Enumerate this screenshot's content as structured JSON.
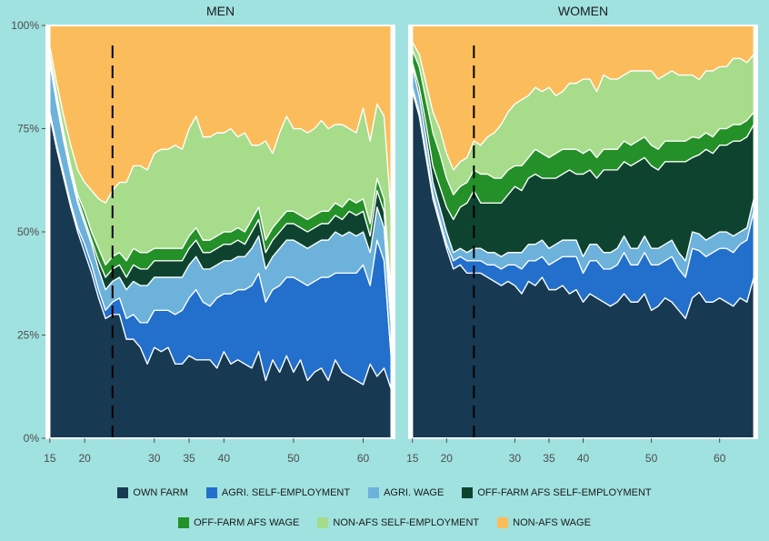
{
  "chart_data": {
    "type": "area",
    "stacked": true,
    "normalized": true,
    "panels": [
      {
        "title": "MEN",
        "x": [
          15,
          16,
          17,
          18,
          19,
          20,
          21,
          22,
          23,
          24,
          25,
          26,
          27,
          28,
          29,
          30,
          31,
          32,
          33,
          34,
          35,
          36,
          37,
          38,
          39,
          40,
          41,
          42,
          43,
          44,
          45,
          46,
          47,
          48,
          49,
          50,
          51,
          52,
          53,
          54,
          55,
          56,
          57,
          58,
          59,
          60,
          61,
          62,
          63,
          64
        ],
        "series": [
          {
            "name": "OWN FARM",
            "values": [
              78,
              70,
              63,
              56,
              50,
              45,
              40,
              34,
              29,
              30,
              30,
              24,
              24,
              22,
              18,
              22,
              21,
              22,
              18,
              18,
              20,
              19,
              19,
              19,
              17,
              21,
              18,
              19,
              18,
              17,
              21,
              14,
              19,
              16,
              20,
              16,
              19,
              14,
              16,
              17,
              14,
              19,
              16,
              15,
              14,
              13,
              18,
              15,
              17,
              12
            ]
          },
          {
            "name": "AGRI. SELF-EMPLOYMENT",
            "values": [
              1,
              1,
              1,
              1,
              1,
              2,
              2,
              2,
              2,
              3,
              4,
              5,
              6,
              6,
              10,
              9,
              10,
              9,
              12,
              13,
              14,
              17,
              14,
              13,
              17,
              14,
              17,
              17,
              18,
              20,
              19,
              19,
              17,
              21,
              19,
              23,
              19,
              23,
              22,
              22,
              25,
              21,
              24,
              25,
              26,
              29,
              19,
              33,
              26,
              8
            ]
          },
          {
            "name": "AGRI. WAGE",
            "values": [
              12,
              10,
              8,
              7,
              6,
              5,
              5,
              5,
              5,
              5,
              5,
              7,
              8,
              9,
              9,
              8,
              8,
              8,
              9,
              8,
              8,
              8,
              8,
              9,
              8,
              8,
              8,
              8,
              8,
              9,
              9,
              8,
              8,
              9,
              9,
              9,
              9,
              9,
              9,
              9,
              9,
              10,
              9,
              10,
              9,
              8,
              8,
              8,
              8,
              8
            ]
          },
          {
            "name": "OFF-FARM AFS SELF-EMPLOYMENT",
            "values": [
              1,
              1,
              1,
              1,
              1,
              1,
              1,
              2,
              3,
              3,
              3,
              3,
              4,
              4,
              4,
              4,
              4,
              4,
              4,
              4,
              4,
              4,
              4,
              4,
              4,
              4,
              4,
              4,
              3,
              4,
              4,
              4,
              4,
              4,
              4,
              4,
              4,
              4,
              4,
              4,
              4,
              4,
              4,
              5,
              5,
              5,
              4,
              4,
              4,
              4
            ]
          },
          {
            "name": "OFF-FARM AFS WAGE",
            "values": [
              1,
              1,
              1,
              1,
              1,
              2,
              2,
              3,
              3,
              3,
              3,
              4,
              4,
              4,
              4,
              3,
              3,
              3,
              3,
              3,
              3,
              3,
              3,
              3,
              3,
              3,
              3,
              3,
              3,
              3,
              3,
              3,
              3,
              3,
              3,
              3,
              3,
              3,
              3,
              3,
              3,
              3,
              3,
              3,
              3,
              3,
              3,
              3,
              3,
              3
            ]
          },
          {
            "name": "NON-AFS SELF-EMPLOYMENT",
            "values": [
              2,
              3,
              4,
              5,
              6,
              7,
              10,
              12,
              15,
              16,
              17,
              19,
              20,
              21,
              20,
              23,
              24,
              24,
              25,
              24,
              26,
              27,
              25,
              25,
              25,
              24,
              25,
              22,
              24,
              18,
              15,
              24,
              18,
              21,
              23,
              20,
              21,
              21,
              21,
              22,
              20,
              19,
              20,
              17,
              17,
              22,
              20,
              18,
              20,
              20
            ]
          },
          {
            "name": "NON-AFS WAGE",
            "values": [
              5,
              14,
              22,
              29,
              35,
              38,
              40,
              42,
              43,
              40,
              38,
              38,
              34,
              34,
              35,
              31,
              30,
              30,
              29,
              30,
              25,
              22,
              27,
              27,
              26,
              26,
              25,
              27,
              26,
              29,
              29,
              28,
              31,
              26,
              22,
              25,
              25,
              26,
              25,
              23,
              25,
              24,
              24,
              25,
              26,
              20,
              28,
              19,
              22,
              45
            ]
          }
        ]
      },
      {
        "title": "WOMEN",
        "x": [
          15,
          16,
          17,
          18,
          19,
          20,
          21,
          22,
          23,
          24,
          25,
          26,
          27,
          28,
          29,
          30,
          31,
          32,
          33,
          34,
          35,
          36,
          37,
          38,
          39,
          40,
          41,
          42,
          43,
          44,
          45,
          46,
          47,
          48,
          49,
          50,
          51,
          52,
          53,
          54,
          55,
          56,
          57,
          58,
          59,
          60,
          61,
          62,
          63,
          64,
          65
        ],
        "series": [
          {
            "name": "OWN FARM",
            "values": [
              84,
              78,
              68,
              58,
              52,
              46,
              41,
              42,
              40,
              40,
              40,
              39,
              38,
              37,
              38,
              37,
              35,
              38,
              37,
              39,
              36,
              36,
              37,
              35,
              36,
              33,
              35,
              34,
              33,
              32,
              33,
              35,
              33,
              33,
              35,
              31,
              32,
              34,
              33,
              31,
              29,
              34,
              35,
              33,
              33,
              34,
              33,
              32,
              34,
              33,
              39
            ]
          },
          {
            "name": "AGRI. SELF-EMPLOYMENT",
            "values": [
              1,
              1,
              1,
              1,
              1,
              1,
              2,
              2,
              3,
              3,
              3,
              3,
              4,
              4,
              4,
              5,
              6,
              5,
              6,
              5,
              6,
              7,
              7,
              9,
              8,
              7,
              8,
              9,
              8,
              9,
              9,
              10,
              9,
              9,
              10,
              11,
              10,
              9,
              11,
              10,
              10,
              12,
              10,
              11,
              12,
              12,
              13,
              13,
              13,
              15,
              16
            ]
          },
          {
            "name": "AGRI. WAGE",
            "values": [
              5,
              4,
              4,
              3,
              3,
              3,
              2,
              2,
              2,
              3,
              3,
              3,
              3,
              3,
              3,
              3,
              4,
              4,
              4,
              4,
              4,
              4,
              4,
              4,
              4,
              4,
              4,
              4,
              4,
              4,
              4,
              4,
              4,
              4,
              4,
              4,
              4,
              4,
              4,
              4,
              4,
              4,
              4,
              4,
              4,
              4,
              4,
              4,
              3,
              3,
              3
            ]
          },
          {
            "name": "OFF-FARM AFS SELF-EMPLOYMENT",
            "values": [
              1,
              2,
              3,
              4,
              5,
              6,
              8,
              10,
              12,
              14,
              11,
              12,
              12,
              13,
              14,
              16,
              15,
              16,
              17,
              15,
              17,
              16,
              16,
              17,
              16,
              20,
              18,
              16,
              20,
              20,
              19,
              18,
              20,
              21,
              19,
              20,
              19,
              20,
              19,
              22,
              24,
              18,
              19,
              22,
              20,
              21,
              21,
              23,
              22,
              22,
              18
            ]
          },
          {
            "name": "OFF-FARM AFS WAGE",
            "values": [
              3,
              5,
              6,
              8,
              8,
              7,
              6,
              5,
              5,
              5,
              7,
              7,
              6,
              6,
              6,
              5,
              6,
              5,
              6,
              6,
              5,
              6,
              6,
              5,
              6,
              5,
              5,
              5,
              5,
              5,
              5,
              5,
              5,
              5,
              5,
              5,
              5,
              5,
              5,
              5,
              5,
              5,
              4,
              4,
              4,
              4,
              4,
              4,
              4,
              4,
              3
            ]
          },
          {
            "name": "NON-AFS SELF-EMPLOYMENT",
            "values": [
              2,
              3,
              4,
              5,
              6,
              6,
              6,
              6,
              6,
              7,
              7,
              9,
              11,
              13,
              14,
              15,
              16,
              15,
              15,
              15,
              17,
              14,
              14,
              16,
              16,
              18,
              17,
              16,
              18,
              17,
              17,
              16,
              18,
              17,
              16,
              18,
              17,
              16,
              17,
              16,
              16,
              15,
              14,
              15,
              16,
              15,
              15,
              16,
              16,
              14,
              14
            ]
          },
          {
            "name": "NON-AFS WAGE",
            "values": [
              4,
              7,
              14,
              21,
              25,
              31,
              35,
              33,
              32,
              28,
              29,
              27,
              26,
              24,
              21,
              19,
              18,
              17,
              15,
              16,
              15,
              17,
              16,
              14,
              14,
              13,
              13,
              16,
              12,
              13,
              13,
              12,
              11,
              11,
              11,
              11,
              13,
              12,
              11,
              12,
              12,
              12,
              13,
              11,
              11,
              10,
              10,
              8,
              8,
              9,
              7
            ]
          }
        ]
      }
    ],
    "x_ticks": [
      15,
      20,
      30,
      35,
      40,
      50,
      60
    ],
    "y_ticks": [
      "0%",
      "25%",
      "50%",
      "75%",
      "100%"
    ],
    "ylim": [
      0,
      100
    ],
    "reference_line_x": 24,
    "colors": {
      "OWN FARM": "#173a52",
      "AGRI. SELF-EMPLOYMENT": "#236fcc",
      "AGRI. WAGE": "#6cb2da",
      "OFF-FARM AFS SELF-EMPLOYMENT": "#0e442f",
      "OFF-FARM AFS WAGE": "#249028",
      "NON-AFS SELF-EMPLOYMENT": "#a6dc8a",
      "NON-AFS WAGE": "#fbbd5c"
    },
    "legend": {
      "position": "bottom",
      "rows": [
        [
          "OWN FARM",
          "AGRI. SELF-EMPLOYMENT",
          "AGRI. WAGE",
          "OFF-FARM AFS SELF-EMPLOYMENT"
        ],
        [
          "OFF-FARM AFS WAGE",
          "NON-AFS SELF-EMPLOYMENT",
          "NON-AFS WAGE"
        ]
      ]
    }
  }
}
